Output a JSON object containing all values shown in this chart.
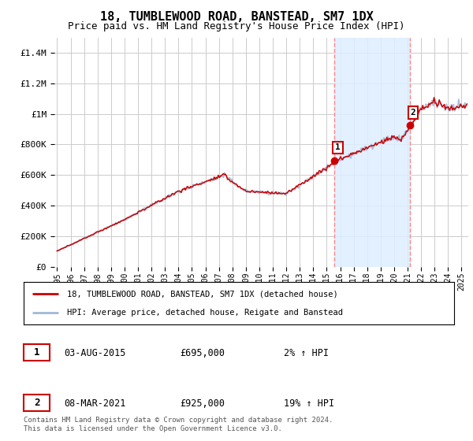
{
  "title": "18, TUMBLEWOOD ROAD, BANSTEAD, SM7 1DX",
  "subtitle": "Price paid vs. HM Land Registry's House Price Index (HPI)",
  "title_fontsize": 11,
  "subtitle_fontsize": 9,
  "background_color": "#ffffff",
  "plot_bg_color": "#ffffff",
  "grid_color": "#cccccc",
  "hpi_color": "#a0b8d8",
  "price_color": "#cc0000",
  "marker1_date_x": 2015.58,
  "marker1_price": 695000,
  "marker2_date_x": 2021.17,
  "marker2_price": 925000,
  "ylim": [
    0,
    1500000
  ],
  "xlim_start": 1994.8,
  "xlim_end": 2025.5,
  "ytick_labels": [
    "£0",
    "£200K",
    "£400K",
    "£600K",
    "£800K",
    "£1M",
    "£1.2M",
    "£1.4M"
  ],
  "ytick_values": [
    0,
    200000,
    400000,
    600000,
    800000,
    1000000,
    1200000,
    1400000
  ],
  "xtick_years": [
    1995,
    1996,
    1997,
    1998,
    1999,
    2000,
    2001,
    2002,
    2003,
    2004,
    2005,
    2006,
    2007,
    2008,
    2009,
    2010,
    2011,
    2012,
    2013,
    2014,
    2015,
    2016,
    2017,
    2018,
    2019,
    2020,
    2021,
    2022,
    2023,
    2024,
    2025
  ],
  "legend_line1": "18, TUMBLEWOOD ROAD, BANSTEAD, SM7 1DX (detached house)",
  "legend_line2": "HPI: Average price, detached house, Reigate and Banstead",
  "table_rows": [
    {
      "num": "1",
      "date": "03-AUG-2015",
      "price": "£695,000",
      "change": "2% ↑ HPI"
    },
    {
      "num": "2",
      "date": "08-MAR-2021",
      "price": "£925,000",
      "change": "19% ↑ HPI"
    }
  ],
  "footer": "Contains HM Land Registry data © Crown copyright and database right 2024.\nThis data is licensed under the Open Government Licence v3.0.",
  "vline1_x": 2015.58,
  "vline2_x": 2021.17,
  "vline_color": "#ff8888",
  "shade_color": "#ddeeff"
}
